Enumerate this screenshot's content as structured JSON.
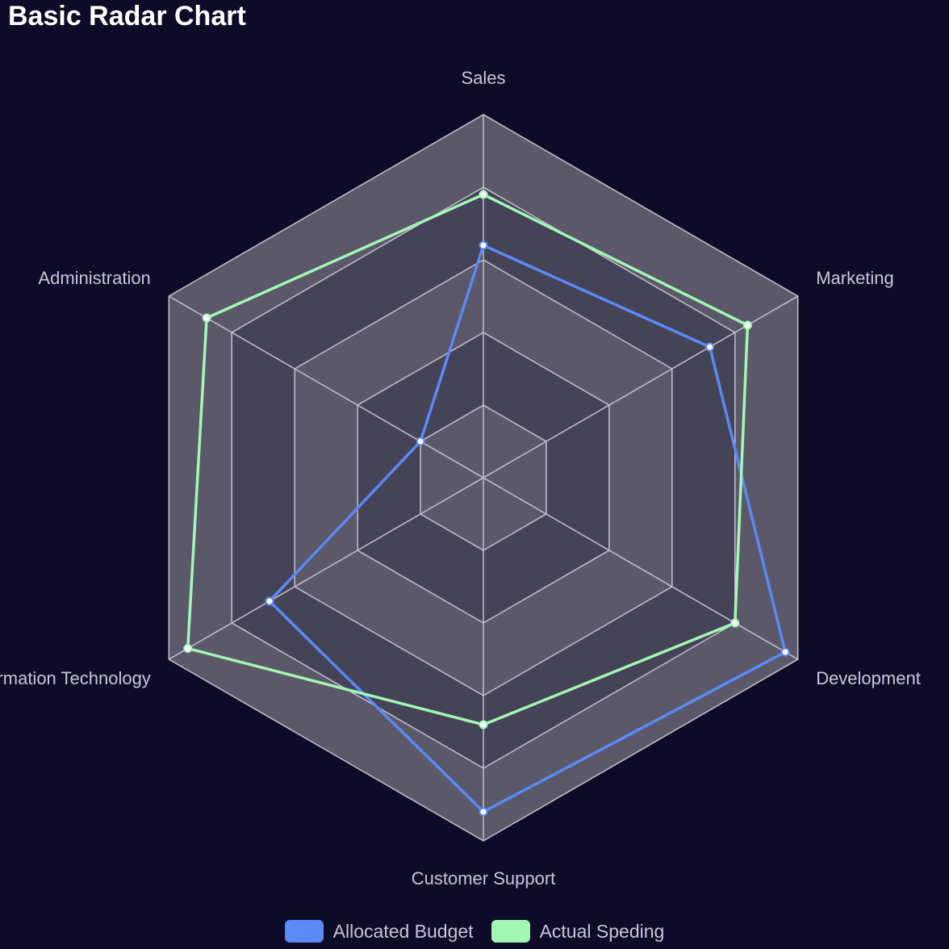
{
  "chart_data": {
    "type": "radar",
    "title": "Basic Radar Chart",
    "categories": [
      "Sales",
      "Marketing",
      "Development",
      "Customer Support",
      "Information Technology",
      "Administration"
    ],
    "rmax": 50000,
    "rings": 5,
    "series": [
      {
        "name": "Allocated Budget",
        "color": "#5b8af6",
        "values": [
          32000,
          36000,
          48000,
          46000,
          34000,
          10000
        ]
      },
      {
        "name": "Actual Speding",
        "color": "#a2f7b5",
        "values": [
          39000,
          42000,
          40000,
          34000,
          47000,
          44000
        ]
      }
    ]
  },
  "colors": {
    "background": "#0e0b29",
    "ring_light": "#5a5869",
    "ring_dark": "#454357",
    "grid": "#bdbac8",
    "label": "#c8c6d8"
  }
}
